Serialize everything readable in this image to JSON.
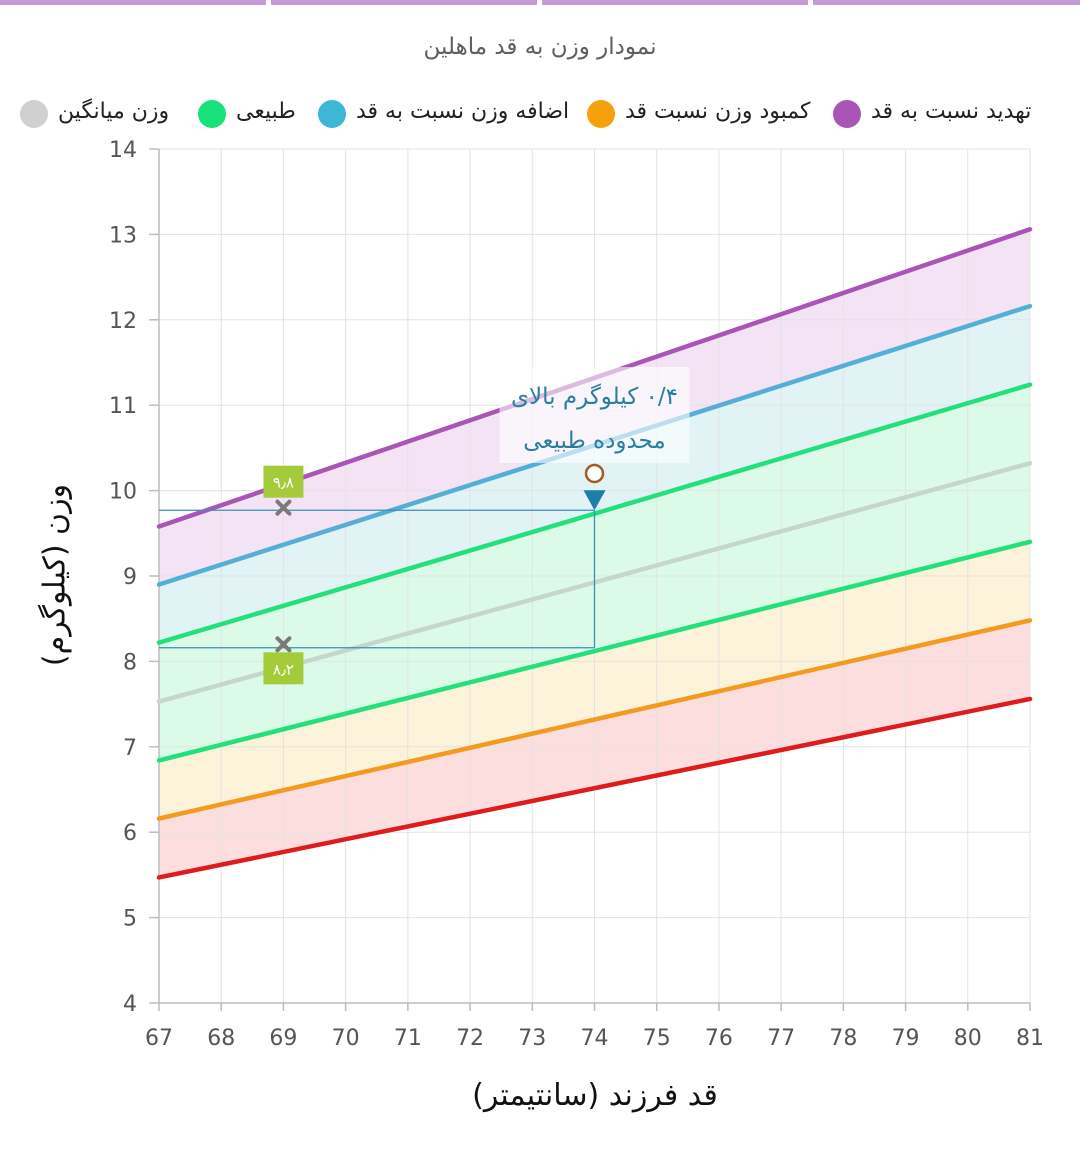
{
  "title": "نمودار وزن به قد ماهلین",
  "legend": [
    {
      "label": "تهدید نسبت به قد",
      "color": "#a855b5"
    },
    {
      "label": "کمبود وزن نسبت قد",
      "color": "#f5a20a"
    },
    {
      "label": "اضافه وزن نسبت به قد",
      "color": "#3eb6d6"
    },
    {
      "label": "طبیعی",
      "color": "#18e27a"
    },
    {
      "label": "وزن میانگین",
      "color": "#d0d0d0"
    }
  ],
  "chart_data": {
    "type": "line",
    "xlabel": "قد فرزند (سانتیمتر)",
    "ylabel": "وزن (کیلوگرم)",
    "xlim": [
      67,
      81
    ],
    "ylim": [
      4,
      14
    ],
    "x_ticks": [
      "67",
      "68",
      "69",
      "70",
      "71",
      "72",
      "73",
      "74",
      "75",
      "76",
      "77",
      "78",
      "79",
      "80",
      "81"
    ],
    "y_ticks": [
      "4",
      "5",
      "6",
      "7",
      "8",
      "9",
      "10",
      "11",
      "12",
      "13",
      "14"
    ],
    "grid": true,
    "series": [
      {
        "key": "threat-top",
        "color": "#a855b5",
        "points": [
          [
            67,
            9.58
          ],
          [
            81,
            13.06
          ]
        ]
      },
      {
        "key": "overweight",
        "color": "#55afd4",
        "points": [
          [
            67,
            8.9
          ],
          [
            81,
            12.16
          ]
        ]
      },
      {
        "key": "normal-upper",
        "color": "#22e07c",
        "points": [
          [
            67,
            8.22
          ],
          [
            81,
            11.24
          ]
        ]
      },
      {
        "key": "average",
        "color": "#c6d6cc",
        "points": [
          [
            67,
            7.53
          ],
          [
            81,
            10.32
          ]
        ]
      },
      {
        "key": "normal-lower",
        "color": "#22e07c",
        "points": [
          [
            67,
            6.84
          ],
          [
            81,
            9.4
          ]
        ]
      },
      {
        "key": "underweight",
        "color": "#f39a1f",
        "points": [
          [
            67,
            6.16
          ],
          [
            81,
            8.48
          ]
        ]
      },
      {
        "key": "severe",
        "color": "#e01b1b",
        "points": [
          [
            67,
            5.47
          ],
          [
            81,
            7.56
          ]
        ]
      }
    ],
    "bands": [
      {
        "from": "threat-top",
        "to": "overweight",
        "fill": "#f2e1f4"
      },
      {
        "from": "overweight",
        "to": "normal-upper",
        "fill": "#e0f2f6"
      },
      {
        "from": "normal-upper",
        "to": "normal-lower",
        "fill": "#d9fbe7"
      },
      {
        "from": "normal-lower",
        "to": "underweight",
        "fill": "#fdf1d8"
      },
      {
        "from": "underweight",
        "to": "severe",
        "fill": "#fddcdc"
      }
    ],
    "range_markers": [
      {
        "x": 69,
        "y": 9.8,
        "label": "۹٫۸",
        "label_pos": "above"
      },
      {
        "x": 69,
        "y": 8.2,
        "label": "۸٫۲",
        "label_pos": "below"
      }
    ],
    "guide_lines": {
      "x_start": 67,
      "x_end": 74,
      "y_upper": 9.77,
      "y_lower": 8.16
    },
    "measurement": {
      "x": 74,
      "y": 10.2
    },
    "annotation": {
      "x": 74,
      "y": 10.85,
      "lines": [
        "۰/۴ کیلوگرم بالای",
        "محدوده طبیعی"
      ]
    },
    "colors": {
      "marker_fill": "#a4cc3a",
      "guide": "#3a8fb7",
      "arrow": "#1e7fa6",
      "circle": "#a65a1e",
      "annotation_text": "#2a7fa0",
      "x_marker": "#7a7a7a"
    }
  }
}
